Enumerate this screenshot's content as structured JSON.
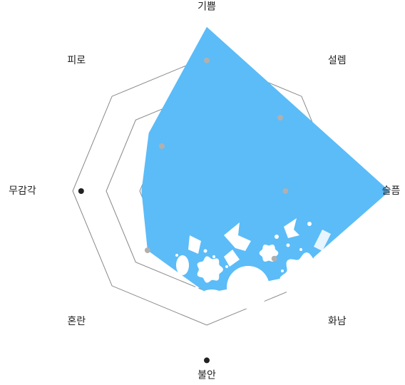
{
  "chart_data": {
    "type": "radar",
    "axes": [
      "기쁨",
      "설렘",
      "슬픔",
      "화남",
      "불안",
      "혼란",
      "무감각",
      "피로"
    ],
    "rings": 4,
    "range": [
      0,
      4
    ],
    "area": {
      "values": [
        4.9,
        3.65,
        5.45,
        3.6,
        3.05,
        2.5,
        1.95,
        2.45
      ],
      "color": "#5bbcf8"
    },
    "markers": {
      "values": [
        3.9,
        3.1,
        2.35,
        2.85,
        5.05,
        2.5,
        3.75,
        1.9
      ],
      "color_inside": "#b0b0b0",
      "color_outside": "#222222"
    },
    "colors": {
      "grid": "#888888",
      "area": "#5bbcf8",
      "decoration": "#ffffff"
    },
    "decoration": "white-splash-illustration"
  }
}
